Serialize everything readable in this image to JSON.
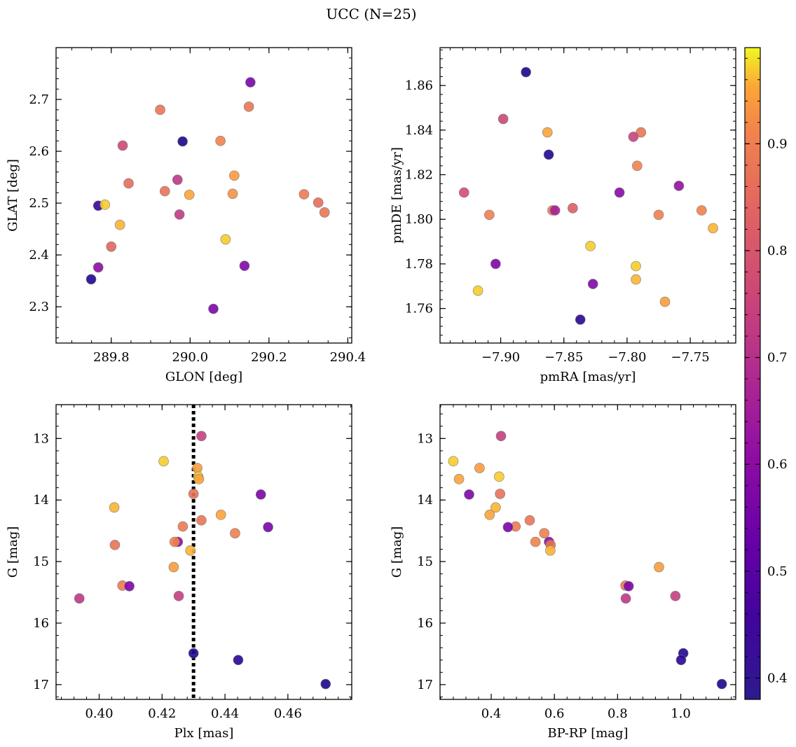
{
  "figure": {
    "title": "UCC (N=25)"
  },
  "colorbar": {
    "colormap": "plasma",
    "range": [
      0.38,
      0.99
    ],
    "ticks": [
      0.4,
      0.5,
      0.6,
      0.7,
      0.8,
      0.9
    ],
    "tick_labels": [
      "0.4",
      "0.5",
      "0.6",
      "0.7",
      "0.8",
      "0.9"
    ]
  },
  "chart_data": [
    {
      "type": "scatter",
      "id": "glon-glat",
      "xlabel": "GLON [deg]",
      "ylabel": "GLAT [deg]",
      "xlim": [
        289.66,
        290.41
      ],
      "ylim": [
        2.23,
        2.8
      ],
      "invert_y": false,
      "xticks": [
        289.8,
        290.0,
        290.2,
        290.4
      ],
      "xtick_labels": [
        "289.8",
        "290.0",
        "290.2",
        "290.4"
      ],
      "yticks": [
        2.3,
        2.4,
        2.5,
        2.6,
        2.7
      ],
      "ytick_labels": [
        "2.3",
        "2.4",
        "2.5",
        "2.6",
        "2.7"
      ],
      "x_minor_step": 0.05,
      "y_minor_step": 0.02,
      "points": [
        {
          "x": 290.153,
          "y": 2.733,
          "c": 0.56
        },
        {
          "x": 289.924,
          "y": 2.68,
          "c": 0.88
        },
        {
          "x": 290.149,
          "y": 2.686,
          "c": 0.88
        },
        {
          "x": 289.981,
          "y": 2.619,
          "c": 0.4
        },
        {
          "x": 290.077,
          "y": 2.62,
          "c": 0.91
        },
        {
          "x": 289.829,
          "y": 2.611,
          "c": 0.76
        },
        {
          "x": 289.968,
          "y": 2.545,
          "c": 0.72
        },
        {
          "x": 290.112,
          "y": 2.553,
          "c": 0.94
        },
        {
          "x": 289.844,
          "y": 2.538,
          "c": 0.86
        },
        {
          "x": 289.936,
          "y": 2.523,
          "c": 0.87
        },
        {
          "x": 289.998,
          "y": 2.516,
          "c": 0.95
        },
        {
          "x": 290.108,
          "y": 2.518,
          "c": 0.93
        },
        {
          "x": 290.289,
          "y": 2.517,
          "c": 0.89
        },
        {
          "x": 290.325,
          "y": 2.501,
          "c": 0.86
        },
        {
          "x": 290.341,
          "y": 2.482,
          "c": 0.88
        },
        {
          "x": 289.767,
          "y": 2.495,
          "c": 0.44
        },
        {
          "x": 289.784,
          "y": 2.497,
          "c": 0.97
        },
        {
          "x": 289.973,
          "y": 2.478,
          "c": 0.73
        },
        {
          "x": 289.822,
          "y": 2.458,
          "c": 0.96
        },
        {
          "x": 290.09,
          "y": 2.43,
          "c": 0.97
        },
        {
          "x": 289.8,
          "y": 2.416,
          "c": 0.84
        },
        {
          "x": 290.138,
          "y": 2.379,
          "c": 0.58
        },
        {
          "x": 289.767,
          "y": 2.376,
          "c": 0.6
        },
        {
          "x": 289.749,
          "y": 2.353,
          "c": 0.41
        },
        {
          "x": 290.059,
          "y": 2.296,
          "c": 0.57
        }
      ]
    },
    {
      "type": "scatter",
      "id": "pmra-pmde",
      "xlabel": "pmRA [mas/yr]",
      "ylabel": "pmDE [mas/yr]",
      "xlim": [
        -7.948,
        -7.714
      ],
      "ylim": [
        1.7445,
        1.877
      ],
      "invert_y": false,
      "xticks": [
        -7.9,
        -7.85,
        -7.8,
        -7.75
      ],
      "xtick_labels": [
        "−7.90",
        "−7.85",
        "−7.80",
        "−7.75"
      ],
      "yticks": [
        1.76,
        1.78,
        1.8,
        1.82,
        1.84,
        1.86
      ],
      "ytick_labels": [
        "1.76",
        "1.78",
        "1.80",
        "1.82",
        "1.84",
        "1.86"
      ],
      "x_minor_step": 0.01,
      "y_minor_step": 0.004,
      "points": [
        {
          "x": -7.88,
          "y": 1.866,
          "c": 0.4
        },
        {
          "x": -7.898,
          "y": 1.845,
          "c": 0.76
        },
        {
          "x": -7.863,
          "y": 1.839,
          "c": 0.95
        },
        {
          "x": -7.789,
          "y": 1.839,
          "c": 0.88
        },
        {
          "x": -7.795,
          "y": 1.837,
          "c": 0.75
        },
        {
          "x": -7.862,
          "y": 1.829,
          "c": 0.41
        },
        {
          "x": -7.792,
          "y": 1.824,
          "c": 0.91
        },
        {
          "x": -7.929,
          "y": 1.812,
          "c": 0.78
        },
        {
          "x": -7.806,
          "y": 1.812,
          "c": 0.59
        },
        {
          "x": -7.759,
          "y": 1.815,
          "c": 0.62
        },
        {
          "x": -7.909,
          "y": 1.802,
          "c": 0.9
        },
        {
          "x": -7.859,
          "y": 1.804,
          "c": 0.89
        },
        {
          "x": -7.857,
          "y": 1.804,
          "c": 0.66
        },
        {
          "x": -7.843,
          "y": 1.805,
          "c": 0.82
        },
        {
          "x": -7.775,
          "y": 1.802,
          "c": 0.9
        },
        {
          "x": -7.741,
          "y": 1.804,
          "c": 0.91
        },
        {
          "x": -7.732,
          "y": 1.796,
          "c": 0.96
        },
        {
          "x": -7.829,
          "y": 1.788,
          "c": 0.97
        },
        {
          "x": -7.904,
          "y": 1.78,
          "c": 0.57
        },
        {
          "x": -7.793,
          "y": 1.779,
          "c": 0.97
        },
        {
          "x": -7.793,
          "y": 1.773,
          "c": 0.96
        },
        {
          "x": -7.827,
          "y": 1.771,
          "c": 0.58
        },
        {
          "x": -7.918,
          "y": 1.768,
          "c": 0.97
        },
        {
          "x": -7.77,
          "y": 1.763,
          "c": 0.94
        },
        {
          "x": -7.837,
          "y": 1.755,
          "c": 0.42
        }
      ]
    },
    {
      "type": "scatter",
      "id": "plx-g",
      "xlabel": "Plx [mas]",
      "ylabel": "G [mag]",
      "xlim": [
        0.3863,
        0.4803
      ],
      "ylim": [
        12.45,
        17.24
      ],
      "invert_y": true,
      "xticks": [
        0.4,
        0.42,
        0.44,
        0.46
      ],
      "xtick_labels": [
        "0.40",
        "0.42",
        "0.44",
        "0.46"
      ],
      "yticks": [
        13,
        14,
        15,
        16,
        17
      ],
      "ytick_labels": [
        "13",
        "14",
        "15",
        "16",
        "17"
      ],
      "x_minor_step": 0.004,
      "y_minor_step": 0.2,
      "vline": {
        "x": 0.43,
        "style": "dotted"
      },
      "points": [
        {
          "x": 0.4325,
          "y": 12.96,
          "c": 0.74
        },
        {
          "x": 0.4205,
          "y": 13.37,
          "c": 0.97
        },
        {
          "x": 0.4312,
          "y": 13.48,
          "c": 0.94
        },
        {
          "x": 0.4315,
          "y": 13.62,
          "c": 0.97
        },
        {
          "x": 0.4317,
          "y": 13.66,
          "c": 0.95
        },
        {
          "x": 0.43,
          "y": 13.9,
          "c": 0.87
        },
        {
          "x": 0.4514,
          "y": 13.91,
          "c": 0.57
        },
        {
          "x": 0.4048,
          "y": 14.12,
          "c": 0.96
        },
        {
          "x": 0.4387,
          "y": 14.24,
          "c": 0.95
        },
        {
          "x": 0.4325,
          "y": 14.33,
          "c": 0.88
        },
        {
          "x": 0.4266,
          "y": 14.43,
          "c": 0.89
        },
        {
          "x": 0.4537,
          "y": 14.44,
          "c": 0.56
        },
        {
          "x": 0.4432,
          "y": 14.54,
          "c": 0.9
        },
        {
          "x": 0.425,
          "y": 14.68,
          "c": 0.6
        },
        {
          "x": 0.424,
          "y": 14.68,
          "c": 0.91
        },
        {
          "x": 0.405,
          "y": 14.73,
          "c": 0.87
        },
        {
          "x": 0.429,
          "y": 14.82,
          "c": 0.96
        },
        {
          "x": 0.4237,
          "y": 15.09,
          "c": 0.94
        },
        {
          "x": 0.4074,
          "y": 15.39,
          "c": 0.89
        },
        {
          "x": 0.4096,
          "y": 15.4,
          "c": 0.57
        },
        {
          "x": 0.4253,
          "y": 15.56,
          "c": 0.74
        },
        {
          "x": 0.3937,
          "y": 15.6,
          "c": 0.72
        },
        {
          "x": 0.43,
          "y": 16.49,
          "c": 0.41
        },
        {
          "x": 0.4442,
          "y": 16.6,
          "c": 0.42
        },
        {
          "x": 0.472,
          "y": 16.99,
          "c": 0.4
        }
      ]
    },
    {
      "type": "scatter",
      "id": "bprp-g",
      "xlabel": "BP-RP [mag]",
      "ylabel": "G [mag]",
      "xlim": [
        0.238,
        1.174
      ],
      "ylim": [
        12.45,
        17.24
      ],
      "invert_y": true,
      "xticks": [
        0.4,
        0.6,
        0.8,
        1.0
      ],
      "xtick_labels": [
        "0.4",
        "0.6",
        "0.8",
        "1.0"
      ],
      "yticks": [
        13,
        14,
        15,
        16,
        17
      ],
      "ytick_labels": [
        "13",
        "14",
        "15",
        "16",
        "17"
      ],
      "x_minor_step": 0.04,
      "y_minor_step": 0.2,
      "points": [
        {
          "x": 0.431,
          "y": 12.96,
          "c": 0.74
        },
        {
          "x": 0.28,
          "y": 13.37,
          "c": 0.97
        },
        {
          "x": 0.363,
          "y": 13.48,
          "c": 0.94
        },
        {
          "x": 0.425,
          "y": 13.62,
          "c": 0.97
        },
        {
          "x": 0.298,
          "y": 13.66,
          "c": 0.95
        },
        {
          "x": 0.428,
          "y": 13.9,
          "c": 0.87
        },
        {
          "x": 0.33,
          "y": 13.91,
          "c": 0.57
        },
        {
          "x": 0.414,
          "y": 14.12,
          "c": 0.96
        },
        {
          "x": 0.395,
          "y": 14.24,
          "c": 0.95
        },
        {
          "x": 0.522,
          "y": 14.33,
          "c": 0.88
        },
        {
          "x": 0.477,
          "y": 14.43,
          "c": 0.89
        },
        {
          "x": 0.453,
          "y": 14.44,
          "c": 0.56
        },
        {
          "x": 0.568,
          "y": 14.54,
          "c": 0.9
        },
        {
          "x": 0.583,
          "y": 14.68,
          "c": 0.6
        },
        {
          "x": 0.54,
          "y": 14.68,
          "c": 0.91
        },
        {
          "x": 0.588,
          "y": 14.73,
          "c": 0.87
        },
        {
          "x": 0.587,
          "y": 14.82,
          "c": 0.96
        },
        {
          "x": 0.931,
          "y": 15.09,
          "c": 0.94
        },
        {
          "x": 0.825,
          "y": 15.39,
          "c": 0.89
        },
        {
          "x": 0.835,
          "y": 15.4,
          "c": 0.57
        },
        {
          "x": 0.983,
          "y": 15.56,
          "c": 0.74
        },
        {
          "x": 0.826,
          "y": 15.6,
          "c": 0.72
        },
        {
          "x": 1.008,
          "y": 16.49,
          "c": 0.41
        },
        {
          "x": 1.001,
          "y": 16.6,
          "c": 0.42
        },
        {
          "x": 1.13,
          "y": 16.99,
          "c": 0.4
        }
      ]
    }
  ]
}
